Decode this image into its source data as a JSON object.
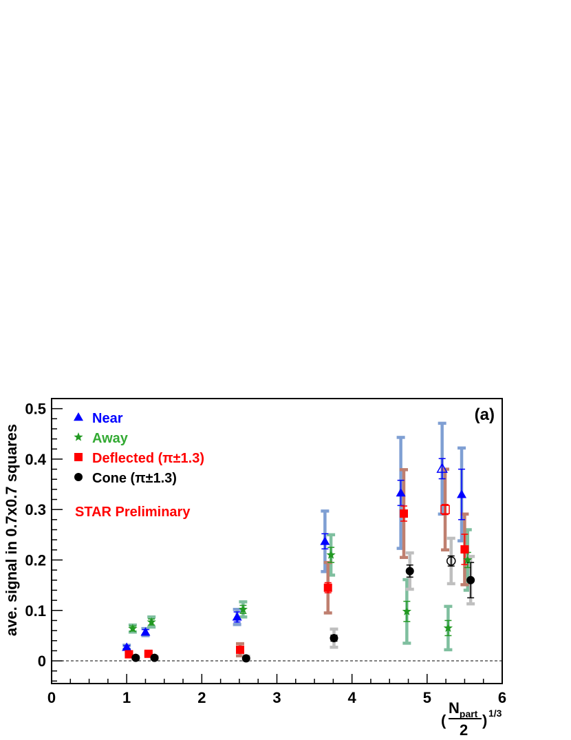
{
  "chart_data": {
    "type": "scatter",
    "ylabel": "ave. signal in 0.7x0.7 squares",
    "xlabel": {
      "open_paren": "(",
      "numerator_main": "N",
      "numerator_sub": "part",
      "denominator": "2",
      "close_paren": ")",
      "exponent": "1/3"
    },
    "panel_label": "(a)",
    "annotation": "STAR Preliminary",
    "xlim": [
      0,
      6
    ],
    "ylim": [
      -0.045,
      0.52
    ],
    "xticks": [
      "0",
      "1",
      "2",
      "3",
      "4",
      "5",
      "6"
    ],
    "yticks": [
      "0",
      "0.1",
      "0.2",
      "0.3",
      "0.4",
      "0.5"
    ],
    "zero_line": "dashed",
    "legend_position": "top-left",
    "series": [
      {
        "name": "Near",
        "color": "#0000ff",
        "sys_color": "#7f9fd3",
        "marker": "triangle",
        "points": [
          {
            "x": 1.0,
            "y": 0.027,
            "stat": 0.003,
            "sys": 0.004,
            "open": false
          },
          {
            "x": 1.25,
            "y": 0.057,
            "stat": 0.005,
            "sys": 0.007,
            "open": false
          },
          {
            "x": 2.47,
            "y": 0.087,
            "stat": 0.01,
            "sys": 0.015,
            "open": false
          },
          {
            "x": 3.64,
            "y": 0.237,
            "stat": 0.015,
            "sys": 0.06,
            "open": false
          },
          {
            "x": 4.65,
            "y": 0.333,
            "stat": 0.025,
            "sys": 0.11,
            "open": false
          },
          {
            "x": 5.2,
            "y": 0.381,
            "stat": 0.02,
            "sys": 0.09,
            "open": true
          },
          {
            "x": 5.46,
            "y": 0.33,
            "stat": 0.05,
            "sys": 0.092,
            "open": false
          }
        ]
      },
      {
        "name": "Away",
        "color": "#229922",
        "sys_color": "#7fbf9f",
        "marker": "star",
        "points": [
          {
            "x": 1.08,
            "y": 0.064,
            "stat": 0.005,
            "sys": 0.007,
            "open": false
          },
          {
            "x": 1.33,
            "y": 0.077,
            "stat": 0.006,
            "sys": 0.01,
            "open": false
          },
          {
            "x": 2.55,
            "y": 0.102,
            "stat": 0.008,
            "sys": 0.015,
            "open": false
          },
          {
            "x": 3.72,
            "y": 0.21,
            "stat": 0.015,
            "sys": 0.04,
            "open": false
          },
          {
            "x": 4.73,
            "y": 0.098,
            "stat": 0.02,
            "sys": 0.063,
            "open": false
          },
          {
            "x": 5.28,
            "y": 0.065,
            "stat": 0.015,
            "sys": 0.043,
            "open": false
          },
          {
            "x": 5.54,
            "y": 0.2,
            "stat": 0.015,
            "sys": 0.06,
            "open": false
          }
        ]
      },
      {
        "name": "Deflected (π±1.3)",
        "color": "#ff0000",
        "sys_color": "#bf7f6f",
        "marker": "square",
        "points": [
          {
            "x": 1.03,
            "y": 0.013,
            "stat": 0.003,
            "sys": 0.003,
            "open": false
          },
          {
            "x": 1.29,
            "y": 0.014,
            "stat": 0.003,
            "sys": 0.003,
            "open": false
          },
          {
            "x": 2.51,
            "y": 0.022,
            "stat": 0.006,
            "sys": 0.012,
            "open": false
          },
          {
            "x": 3.68,
            "y": 0.145,
            "stat": 0.01,
            "sys": 0.05,
            "open": false
          },
          {
            "x": 4.69,
            "y": 0.292,
            "stat": 0.015,
            "sys": 0.087,
            "open": false
          },
          {
            "x": 5.24,
            "y": 0.3,
            "stat": 0.01,
            "sys": 0.08,
            "open": true
          },
          {
            "x": 5.5,
            "y": 0.221,
            "stat": 0.03,
            "sys": 0.07,
            "open": false
          }
        ]
      },
      {
        "name": "Cone (π±1.3)",
        "color": "#000000",
        "sys_color": "#bfbfbf",
        "marker": "circle",
        "points": [
          {
            "x": 1.12,
            "y": 0.006,
            "stat": 0.002,
            "sys": 0.002,
            "open": false
          },
          {
            "x": 1.37,
            "y": 0.006,
            "stat": 0.002,
            "sys": 0.002,
            "open": false
          },
          {
            "x": 2.59,
            "y": 0.005,
            "stat": 0.002,
            "sys": 0.004,
            "open": false
          },
          {
            "x": 3.76,
            "y": 0.045,
            "stat": 0.006,
            "sys": 0.018,
            "open": false
          },
          {
            "x": 4.77,
            "y": 0.178,
            "stat": 0.012,
            "sys": 0.036,
            "open": false
          },
          {
            "x": 5.32,
            "y": 0.198,
            "stat": 0.01,
            "sys": 0.045,
            "open": true
          },
          {
            "x": 5.58,
            "y": 0.16,
            "stat": 0.035,
            "sys": 0.047,
            "open": false
          }
        ]
      }
    ]
  }
}
